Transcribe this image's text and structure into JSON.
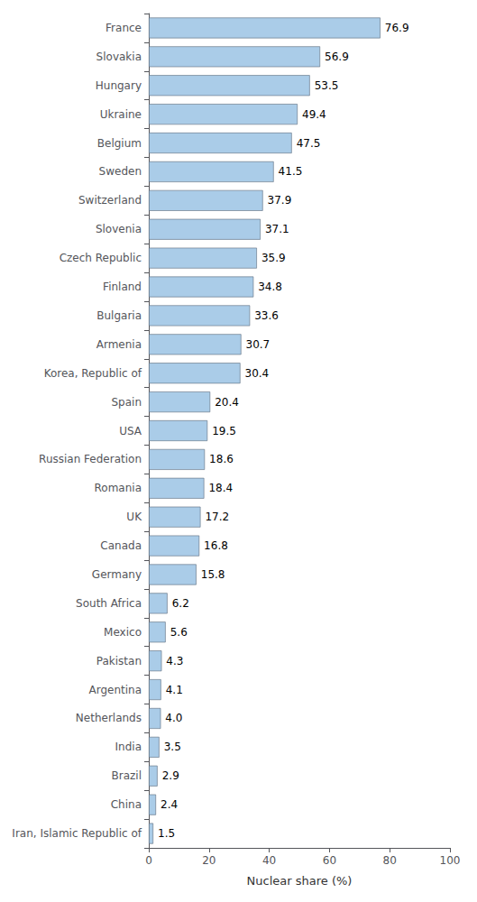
{
  "chart_data": {
    "type": "bar",
    "orientation": "horizontal",
    "categories": [
      "France",
      "Slovakia",
      "Hungary",
      "Ukraine",
      "Belgium",
      "Sweden",
      "Switzerland",
      "Slovenia",
      "Czech Republic",
      "Finland",
      "Bulgaria",
      "Armenia",
      "Korea, Republic of",
      "Spain",
      "USA",
      "Russian Federation",
      "Romania",
      "UK",
      "Canada",
      "Germany",
      "South Africa",
      "Mexico",
      "Pakistan",
      "Argentina",
      "Netherlands",
      "India",
      "Brazil",
      "China",
      "Iran, Islamic Republic of"
    ],
    "values": [
      76.9,
      56.9,
      53.5,
      49.4,
      47.5,
      41.5,
      37.9,
      37.1,
      35.9,
      34.8,
      33.6,
      30.7,
      30.4,
      20.4,
      19.5,
      18.6,
      18.4,
      17.2,
      16.8,
      15.8,
      6.2,
      5.6,
      4.3,
      4.1,
      4.0,
      3.5,
      2.9,
      2.4,
      1.5
    ],
    "value_labels": [
      "76.9",
      "56.9",
      "53.5",
      "49.4",
      "47.5",
      "41.5",
      "37.9",
      "37.1",
      "35.9",
      "34.8",
      "33.6",
      "30.7",
      "30.4",
      "20.4",
      "19.5",
      "18.6",
      "18.4",
      "17.2",
      "16.8",
      "15.8",
      "6.2",
      "5.6",
      "4.3",
      "4.1",
      "4.0",
      "3.5",
      "2.9",
      "2.4",
      "1.5"
    ],
    "data_labels": true,
    "color": "#aacce8",
    "xlabel": "Nuclear share (%)",
    "xlim": [
      0,
      100
    ],
    "xticks": [
      0,
      20,
      40,
      60,
      80,
      100
    ],
    "grid": false
  }
}
